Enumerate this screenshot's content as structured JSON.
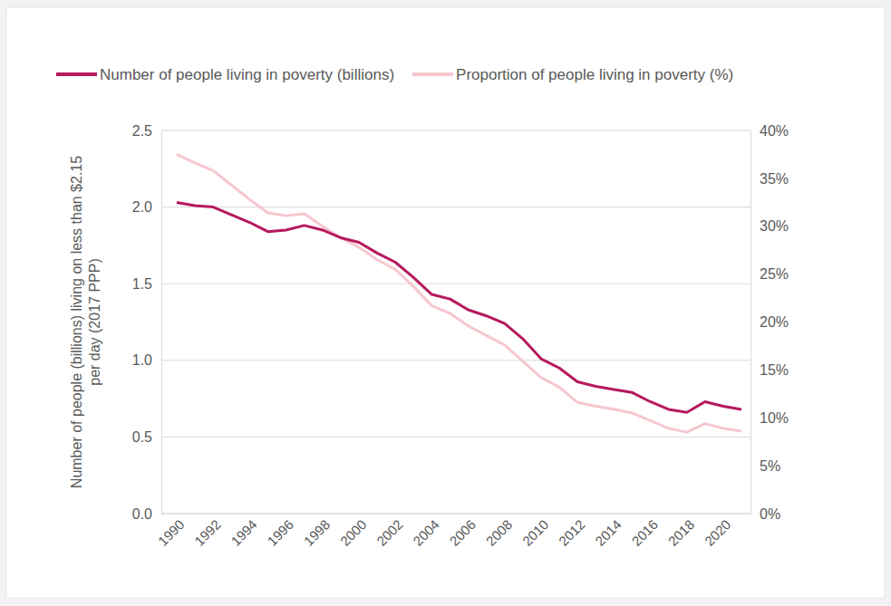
{
  "chart_data": {
    "type": "line",
    "y_label": [
      "Number of people (billions) living on less than $2.15",
      "per day (2017 PPP)"
    ],
    "categories": [
      "1990",
      null,
      "1992",
      null,
      "1994",
      null,
      "1996",
      null,
      "1998",
      null,
      "2000",
      null,
      "2002",
      null,
      "2004",
      null,
      "2006",
      null,
      "2008",
      null,
      "2010",
      null,
      "2012",
      null,
      "2014",
      null,
      "2016",
      null,
      "2018",
      null,
      "2020",
      null
    ],
    "series": [
      {
        "name": "Number of people living in poverty (billions)",
        "color": "#b5195e",
        "values": [
          2.03,
          2.01,
          2.0,
          1.95,
          1.9,
          1.84,
          1.85,
          1.88,
          1.85,
          1.8,
          1.77,
          1.7,
          1.64,
          1.54,
          1.43,
          1.4,
          1.33,
          1.29,
          1.24,
          1.14,
          1.01,
          0.95,
          0.86,
          0.83,
          0.81,
          0.79,
          0.73,
          0.68,
          0.66,
          0.73,
          0.7,
          0.68
        ]
      },
      {
        "name": "Proportion of people living in poverty (%)",
        "color": "#f7c6ce",
        "axis": "y2",
        "values": [
          37.5,
          36.6,
          35.8,
          34.3,
          32.8,
          31.4,
          31.1,
          31.3,
          30.0,
          28.8,
          27.8,
          26.5,
          25.5,
          23.7,
          21.7,
          20.9,
          19.6,
          18.6,
          17.6,
          15.9,
          14.2,
          13.2,
          11.6,
          11.2,
          10.9,
          10.5,
          9.7,
          8.9,
          8.5,
          9.4,
          8.9,
          8.6
        ]
      }
    ],
    "ylim": [
      0,
      2.5
    ],
    "yticks": [
      {
        "value": 0,
        "label": "0.0"
      },
      0.5,
      {
        "value": 1,
        "label": "1.0"
      },
      1.5,
      {
        "value": 2,
        "label": "2.0"
      },
      2.5
    ],
    "y2lim": [
      0,
      40
    ],
    "y2ticks": [
      {
        "value": 0,
        "label": "0%"
      },
      {
        "value": 5,
        "label": "5%"
      },
      {
        "value": 10,
        "label": "10%"
      },
      {
        "value": 15,
        "label": "15%"
      },
      {
        "value": 20,
        "label": "20%"
      },
      {
        "value": 25,
        "label": "25%"
      },
      {
        "value": 30,
        "label": "30%"
      },
      {
        "value": 35,
        "label": "35%"
      },
      {
        "value": 40,
        "label": "40%"
      }
    ],
    "grid": true,
    "legend": "top"
  }
}
